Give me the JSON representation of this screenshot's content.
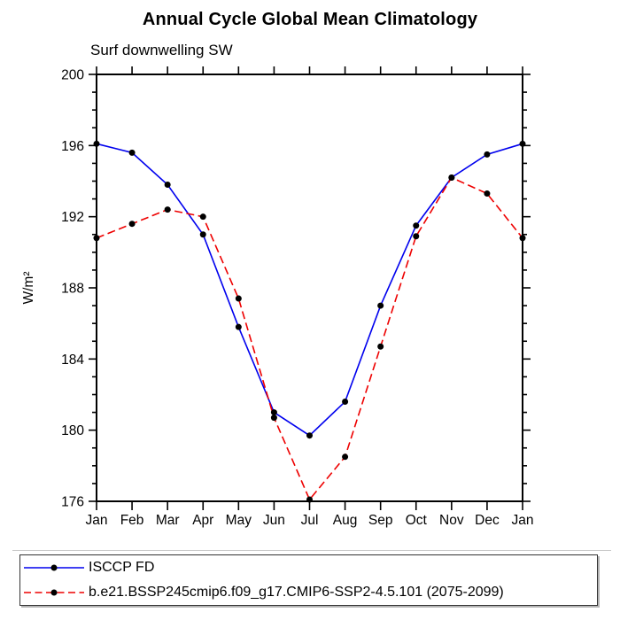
{
  "title": "Annual Cycle Global Mean Climatology",
  "subtitle": "Surf downwelling SW",
  "chart_data": {
    "type": "line",
    "categories": [
      "Jan",
      "Feb",
      "Mar",
      "Apr",
      "May",
      "Jun",
      "Jul",
      "Aug",
      "Sep",
      "Oct",
      "Nov",
      "Dec",
      "Jan"
    ],
    "ylabel": "W/m²",
    "ylim": [
      176,
      200
    ],
    "yticks": [
      176,
      180,
      184,
      188,
      192,
      196,
      200
    ],
    "yminor_step": 1,
    "grid": "off",
    "legend_position": "bottom",
    "axis_color": "#000000",
    "marker_color": "#000000",
    "series": [
      {
        "name": "ISCCP FD",
        "color": "#0000ee",
        "line_style": "solid",
        "values": [
          196.1,
          195.6,
          193.8,
          191.0,
          185.8,
          181.0,
          179.7,
          181.6,
          187.0,
          191.5,
          194.2,
          195.5,
          196.1
        ]
      },
      {
        "name": "b.e21.BSSP245cmip6.f09_g17.CMIP6-SSP2-4.5.101 (2075-2099)",
        "color": "#ee0000",
        "line_style": "dashed",
        "values": [
          190.8,
          191.6,
          192.4,
          192.0,
          187.4,
          180.7,
          176.1,
          178.5,
          184.7,
          190.9,
          194.2,
          193.3,
          190.8
        ]
      }
    ]
  }
}
